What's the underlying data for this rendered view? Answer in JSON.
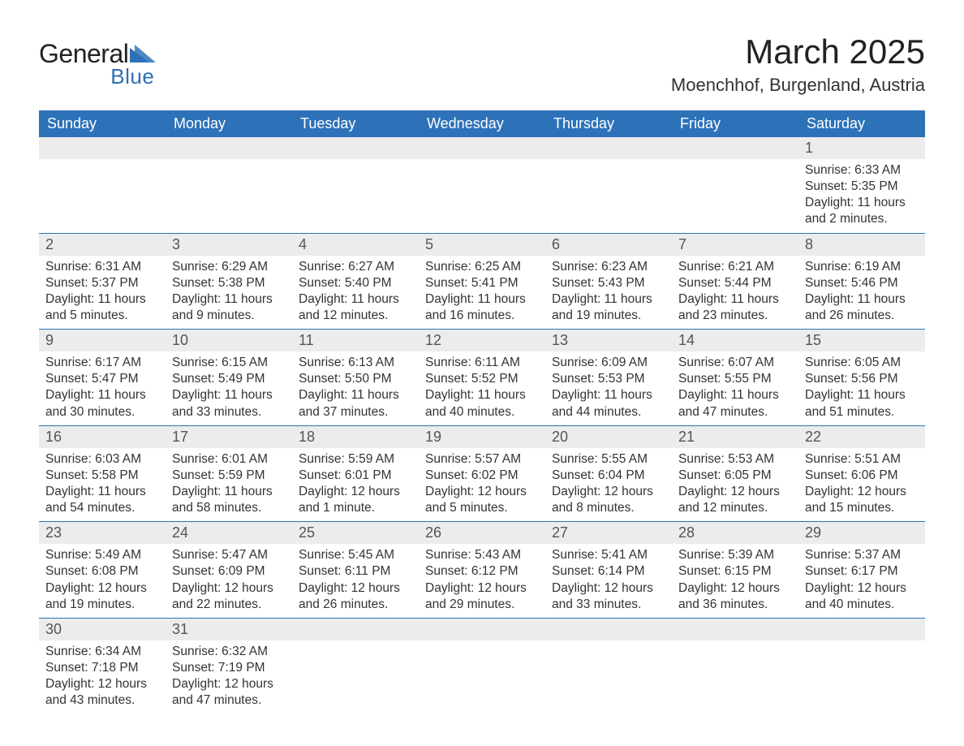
{
  "logo": {
    "text1": "General",
    "text2": "Blue",
    "tri_color": "#2d72b8",
    "text_color": "#222"
  },
  "header": {
    "month_title": "March 2025",
    "location": "Moenchhof, Burgenland, Austria"
  },
  "colors": {
    "header_bg": "#2d72b8",
    "header_text": "#ffffff",
    "daynum_bg": "#ececec",
    "daynum_text": "#555555",
    "detail_text": "#333333",
    "week_border": "#2d72b8"
  },
  "weekdays": [
    "Sunday",
    "Monday",
    "Tuesday",
    "Wednesday",
    "Thursday",
    "Friday",
    "Saturday"
  ],
  "weeks": [
    [
      null,
      null,
      null,
      null,
      null,
      null,
      {
        "n": "1",
        "sr": "Sunrise: 6:33 AM",
        "ss": "Sunset: 5:35 PM",
        "dl": "Daylight: 11 hours and 2 minutes."
      }
    ],
    [
      {
        "n": "2",
        "sr": "Sunrise: 6:31 AM",
        "ss": "Sunset: 5:37 PM",
        "dl": "Daylight: 11 hours and 5 minutes."
      },
      {
        "n": "3",
        "sr": "Sunrise: 6:29 AM",
        "ss": "Sunset: 5:38 PM",
        "dl": "Daylight: 11 hours and 9 minutes."
      },
      {
        "n": "4",
        "sr": "Sunrise: 6:27 AM",
        "ss": "Sunset: 5:40 PM",
        "dl": "Daylight: 11 hours and 12 minutes."
      },
      {
        "n": "5",
        "sr": "Sunrise: 6:25 AM",
        "ss": "Sunset: 5:41 PM",
        "dl": "Daylight: 11 hours and 16 minutes."
      },
      {
        "n": "6",
        "sr": "Sunrise: 6:23 AM",
        "ss": "Sunset: 5:43 PM",
        "dl": "Daylight: 11 hours and 19 minutes."
      },
      {
        "n": "7",
        "sr": "Sunrise: 6:21 AM",
        "ss": "Sunset: 5:44 PM",
        "dl": "Daylight: 11 hours and 23 minutes."
      },
      {
        "n": "8",
        "sr": "Sunrise: 6:19 AM",
        "ss": "Sunset: 5:46 PM",
        "dl": "Daylight: 11 hours and 26 minutes."
      }
    ],
    [
      {
        "n": "9",
        "sr": "Sunrise: 6:17 AM",
        "ss": "Sunset: 5:47 PM",
        "dl": "Daylight: 11 hours and 30 minutes."
      },
      {
        "n": "10",
        "sr": "Sunrise: 6:15 AM",
        "ss": "Sunset: 5:49 PM",
        "dl": "Daylight: 11 hours and 33 minutes."
      },
      {
        "n": "11",
        "sr": "Sunrise: 6:13 AM",
        "ss": "Sunset: 5:50 PM",
        "dl": "Daylight: 11 hours and 37 minutes."
      },
      {
        "n": "12",
        "sr": "Sunrise: 6:11 AM",
        "ss": "Sunset: 5:52 PM",
        "dl": "Daylight: 11 hours and 40 minutes."
      },
      {
        "n": "13",
        "sr": "Sunrise: 6:09 AM",
        "ss": "Sunset: 5:53 PM",
        "dl": "Daylight: 11 hours and 44 minutes."
      },
      {
        "n": "14",
        "sr": "Sunrise: 6:07 AM",
        "ss": "Sunset: 5:55 PM",
        "dl": "Daylight: 11 hours and 47 minutes."
      },
      {
        "n": "15",
        "sr": "Sunrise: 6:05 AM",
        "ss": "Sunset: 5:56 PM",
        "dl": "Daylight: 11 hours and 51 minutes."
      }
    ],
    [
      {
        "n": "16",
        "sr": "Sunrise: 6:03 AM",
        "ss": "Sunset: 5:58 PM",
        "dl": "Daylight: 11 hours and 54 minutes."
      },
      {
        "n": "17",
        "sr": "Sunrise: 6:01 AM",
        "ss": "Sunset: 5:59 PM",
        "dl": "Daylight: 11 hours and 58 minutes."
      },
      {
        "n": "18",
        "sr": "Sunrise: 5:59 AM",
        "ss": "Sunset: 6:01 PM",
        "dl": "Daylight: 12 hours and 1 minute."
      },
      {
        "n": "19",
        "sr": "Sunrise: 5:57 AM",
        "ss": "Sunset: 6:02 PM",
        "dl": "Daylight: 12 hours and 5 minutes."
      },
      {
        "n": "20",
        "sr": "Sunrise: 5:55 AM",
        "ss": "Sunset: 6:04 PM",
        "dl": "Daylight: 12 hours and 8 minutes."
      },
      {
        "n": "21",
        "sr": "Sunrise: 5:53 AM",
        "ss": "Sunset: 6:05 PM",
        "dl": "Daylight: 12 hours and 12 minutes."
      },
      {
        "n": "22",
        "sr": "Sunrise: 5:51 AM",
        "ss": "Sunset: 6:06 PM",
        "dl": "Daylight: 12 hours and 15 minutes."
      }
    ],
    [
      {
        "n": "23",
        "sr": "Sunrise: 5:49 AM",
        "ss": "Sunset: 6:08 PM",
        "dl": "Daylight: 12 hours and 19 minutes."
      },
      {
        "n": "24",
        "sr": "Sunrise: 5:47 AM",
        "ss": "Sunset: 6:09 PM",
        "dl": "Daylight: 12 hours and 22 minutes."
      },
      {
        "n": "25",
        "sr": "Sunrise: 5:45 AM",
        "ss": "Sunset: 6:11 PM",
        "dl": "Daylight: 12 hours and 26 minutes."
      },
      {
        "n": "26",
        "sr": "Sunrise: 5:43 AM",
        "ss": "Sunset: 6:12 PM",
        "dl": "Daylight: 12 hours and 29 minutes."
      },
      {
        "n": "27",
        "sr": "Sunrise: 5:41 AM",
        "ss": "Sunset: 6:14 PM",
        "dl": "Daylight: 12 hours and 33 minutes."
      },
      {
        "n": "28",
        "sr": "Sunrise: 5:39 AM",
        "ss": "Sunset: 6:15 PM",
        "dl": "Daylight: 12 hours and 36 minutes."
      },
      {
        "n": "29",
        "sr": "Sunrise: 5:37 AM",
        "ss": "Sunset: 6:17 PM",
        "dl": "Daylight: 12 hours and 40 minutes."
      }
    ],
    [
      {
        "n": "30",
        "sr": "Sunrise: 6:34 AM",
        "ss": "Sunset: 7:18 PM",
        "dl": "Daylight: 12 hours and 43 minutes."
      },
      {
        "n": "31",
        "sr": "Sunrise: 6:32 AM",
        "ss": "Sunset: 7:19 PM",
        "dl": "Daylight: 12 hours and 47 minutes."
      },
      null,
      null,
      null,
      null,
      null
    ]
  ]
}
